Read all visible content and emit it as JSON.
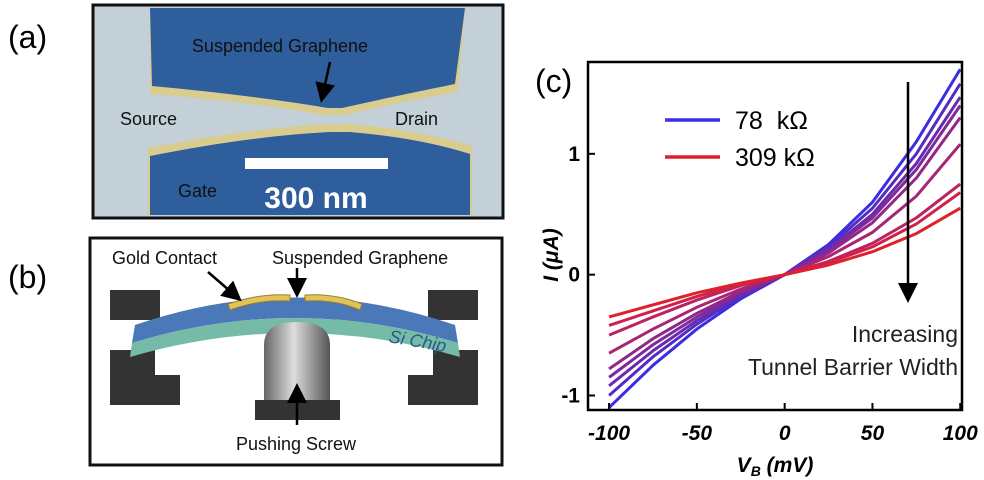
{
  "panel_labels": [
    "(a)",
    "(b)",
    "(c)"
  ],
  "panel_a": {
    "texts": [
      "Suspended Graphene",
      "Source",
      "Drain",
      "Gate"
    ],
    "scale_bar": "300 nm"
  },
  "panel_b": {
    "texts": [
      "Gold Contact",
      "Suspended Graphene",
      "Si Chip",
      "Pushing Screw"
    ]
  },
  "chart_data": {
    "type": "line",
    "x_label": [
      "V",
      "B",
      " (mV)"
    ],
    "y_label": "I (μA)",
    "annotations": [
      "Increasing",
      "Tunnel Barrier Width"
    ],
    "x": [
      -100,
      -75,
      -50,
      -25,
      0,
      25,
      50,
      75,
      100
    ],
    "xlim": [
      -112,
      101
    ],
    "xticks": [
      -100,
      -50,
      0,
      50,
      100
    ],
    "ylim": [
      -1.12,
      1.76
    ],
    "yticks": [
      -1,
      0,
      1
    ],
    "series": [
      {
        "name": "78  kΩ",
        "color": "#3a2ee0",
        "values": [
          -1.1,
          -0.75,
          -0.45,
          -0.2,
          0,
          0.25,
          0.6,
          1.1,
          1.7
        ]
      },
      {
        "color": "#542cc4",
        "values": [
          -1.0,
          -0.68,
          -0.41,
          -0.18,
          0,
          0.23,
          0.55,
          1.0,
          1.58
        ]
      },
      {
        "color": "#6a2ab0",
        "values": [
          -0.92,
          -0.63,
          -0.38,
          -0.17,
          0,
          0.21,
          0.5,
          0.92,
          1.47
        ]
      },
      {
        "color": "#7e299c",
        "values": [
          -0.85,
          -0.58,
          -0.35,
          -0.15,
          0,
          0.2,
          0.47,
          0.87,
          1.4
        ]
      },
      {
        "color": "#932788",
        "values": [
          -0.78,
          -0.53,
          -0.32,
          -0.14,
          0,
          0.18,
          0.43,
          0.8,
          1.3
        ]
      },
      {
        "color": "#a82574",
        "values": [
          -0.65,
          -0.45,
          -0.27,
          -0.12,
          0,
          0.15,
          0.35,
          0.65,
          1.08
        ]
      },
      {
        "color": "#bc2360",
        "values": [
          -0.5,
          -0.35,
          -0.21,
          -0.09,
          0,
          0.11,
          0.26,
          0.47,
          0.75
        ]
      },
      {
        "color": "#d0214c",
        "values": [
          -0.42,
          -0.3,
          -0.18,
          -0.08,
          0,
          0.1,
          0.23,
          0.42,
          0.68
        ]
      },
      {
        "name": "309 kΩ",
        "color": "#e0202a",
        "values": [
          -0.35,
          -0.25,
          -0.15,
          -0.07,
          0,
          0.08,
          0.19,
          0.34,
          0.55
        ]
      }
    ]
  }
}
